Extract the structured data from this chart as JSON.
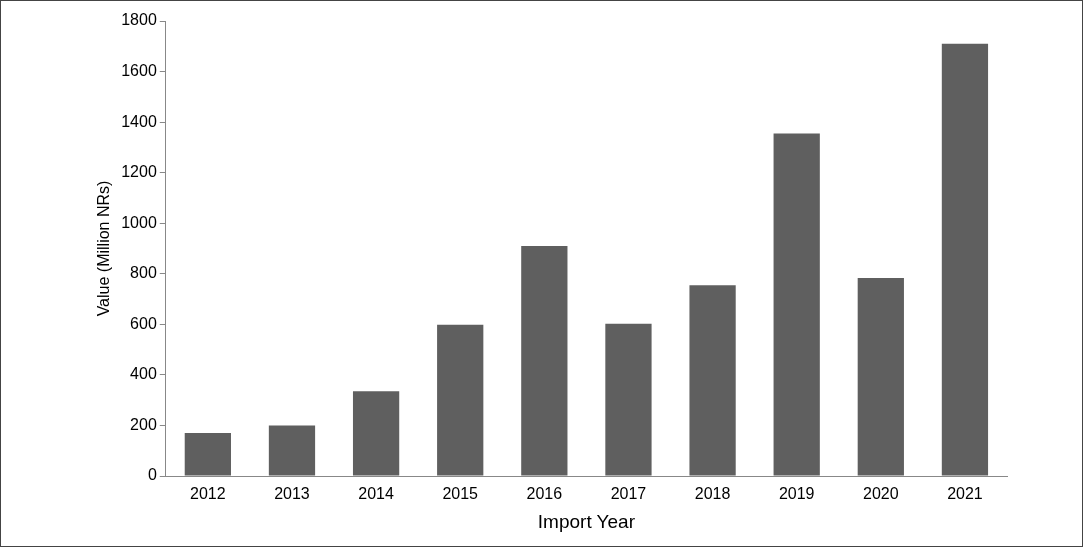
{
  "chart_data": {
    "type": "bar",
    "xlabel": "Import Year",
    "ylabel": "Value (Million NRs)",
    "categories": [
      "2012",
      "2013",
      "2014",
      "2015",
      "2016",
      "2017",
      "2018",
      "2019",
      "2020",
      "2021"
    ],
    "values": [
      170,
      200,
      335,
      598,
      910,
      602,
      755,
      1355,
      783,
      1710
    ],
    "color": "#5f5f5f",
    "ylim": [
      0,
      1800
    ],
    "yticks": [
      0,
      200,
      400,
      600,
      800,
      1000,
      1200,
      1400,
      1600,
      1800
    ],
    "grid": false,
    "legend": false
  }
}
